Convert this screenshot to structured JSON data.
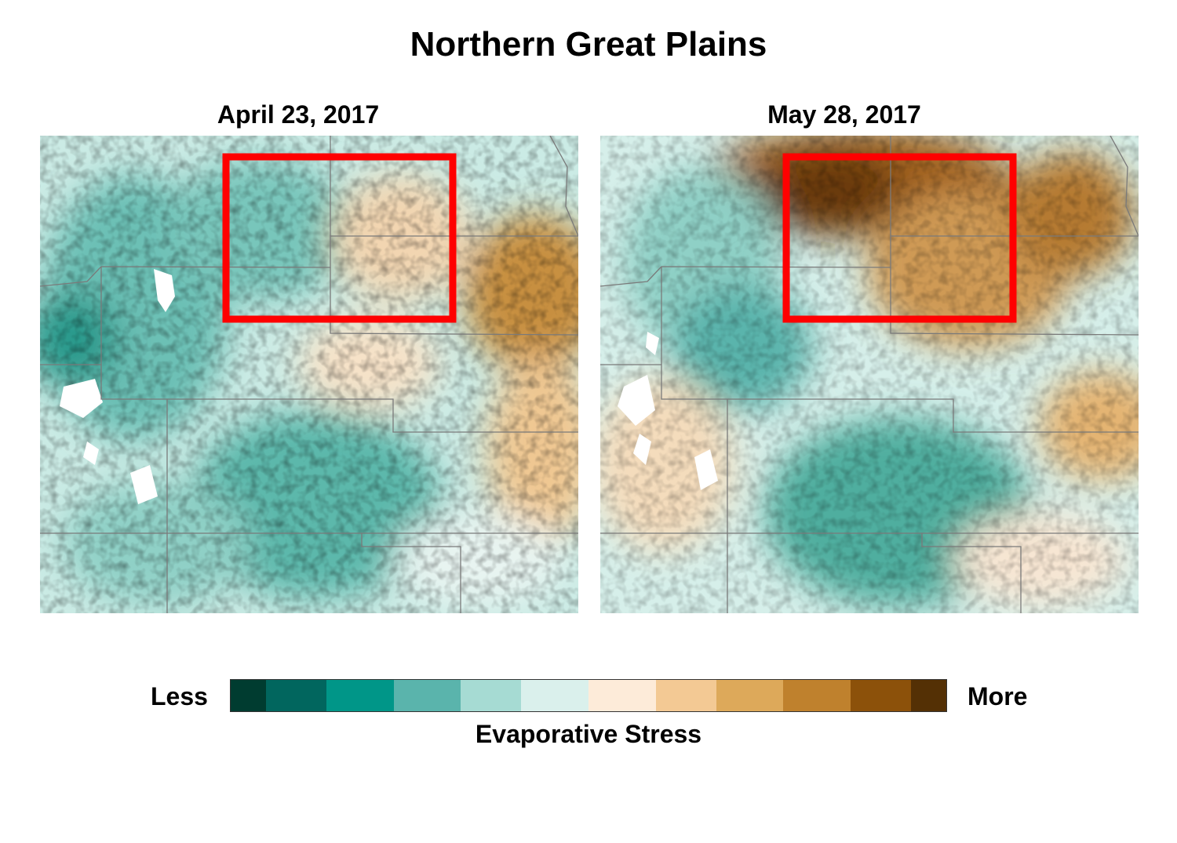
{
  "title": "Northern Great Plains",
  "panels": [
    {
      "date": "April 23, 2017",
      "surface": "mostly-low-stress",
      "highlight_color": "#ff0000"
    },
    {
      "date": "May 28, 2017",
      "surface": "high-stress-north",
      "highlight_color": "#ff0000"
    }
  ],
  "legend": {
    "low_label": "Less",
    "high_label": "More",
    "title": "Evaporative Stress",
    "colors": [
      "#003c30",
      "#01665e",
      "#009688",
      "#5ab4ac",
      "#a6dbd3",
      "#daf0ec",
      "#fdebd9",
      "#f3c994",
      "#dda95a",
      "#bf812d",
      "#8c510a",
      "#543005"
    ]
  }
}
